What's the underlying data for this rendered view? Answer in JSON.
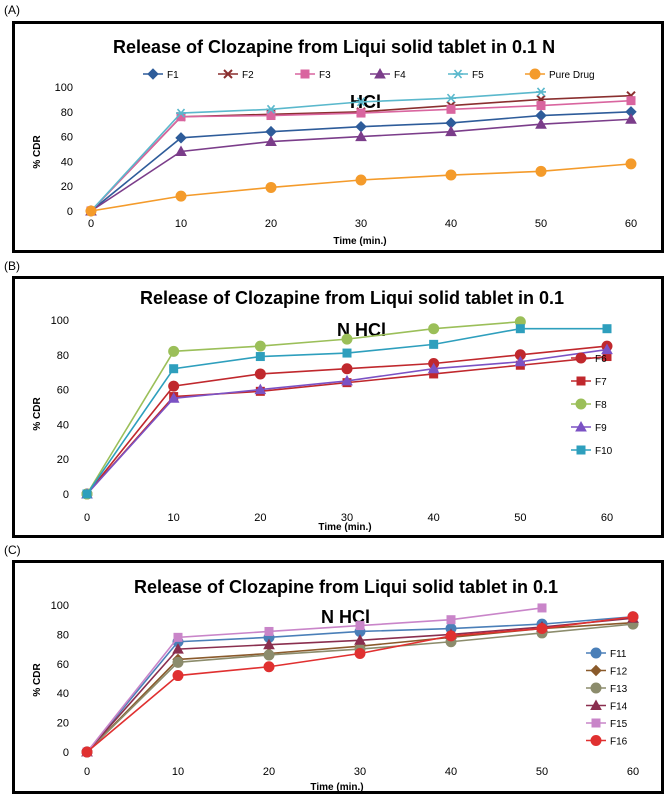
{
  "chart_data": [
    {
      "panel": "(A)",
      "type": "line",
      "title_lines": [
        "Release of Clozapine from Liqui solid tablet in 0.1 N",
        "HCl"
      ],
      "xlabel": "Time (min.)",
      "ylabel": "% CDR",
      "categories": [
        0,
        10,
        20,
        30,
        40,
        50,
        60
      ],
      "xlim": [
        0,
        60
      ],
      "ylim": [
        0,
        100
      ],
      "yticks": [
        0,
        20,
        40,
        60,
        80,
        100
      ],
      "legend_position": "top",
      "series": [
        {
          "name": "F1",
          "values": [
            0,
            59,
            64,
            68,
            71,
            77,
            80
          ],
          "color": "#2e5c9a",
          "marker": "diamond"
        },
        {
          "name": "F2",
          "values": [
            0,
            76,
            78,
            80,
            85,
            90,
            93
          ],
          "color": "#8a2f2f",
          "marker": "x"
        },
        {
          "name": "F3",
          "values": [
            0,
            76,
            77,
            79,
            82,
            85,
            89
          ],
          "color": "#d9659f",
          "marker": "square"
        },
        {
          "name": "F4",
          "values": [
            0,
            48,
            56,
            60,
            64,
            70,
            74
          ],
          "color": "#7b3d8a",
          "marker": "triangle"
        },
        {
          "name": "F5",
          "values": [
            0,
            79,
            82,
            88,
            91,
            96,
            null
          ],
          "color": "#5ab8cc",
          "marker": "asterisk"
        },
        {
          "name": "Pure Drug",
          "values": [
            0,
            12,
            19,
            25,
            29,
            32,
            38
          ],
          "color": "#f49b2b",
          "marker": "circle"
        }
      ]
    },
    {
      "panel": "(B)",
      "type": "line",
      "title_lines": [
        "Release of Clozapine from Liqui solid tablet in 0.1",
        "N HCl"
      ],
      "xlabel": "Time (min.)",
      "ylabel": "% CDR",
      "categories": [
        0,
        10,
        20,
        30,
        40,
        50,
        60
      ],
      "xlim": [
        0,
        60
      ],
      "ylim": [
        0,
        100
      ],
      "yticks": [
        0,
        20,
        40,
        60,
        80,
        100
      ],
      "legend_position": "right",
      "series": [
        {
          "name": "F6",
          "values": [
            0,
            62,
            69,
            72,
            75,
            80,
            85
          ],
          "color": "#c0282d",
          "marker": "circle"
        },
        {
          "name": "F7",
          "values": [
            0,
            56,
            59,
            64,
            69,
            74,
            79
          ],
          "color": "#c0282d",
          "marker": "square"
        },
        {
          "name": "F8",
          "values": [
            0,
            82,
            85,
            89,
            95,
            99,
            null
          ],
          "color": "#9bbf59",
          "marker": "circle"
        },
        {
          "name": "F9",
          "values": [
            0,
            55,
            60,
            65,
            72,
            76,
            83
          ],
          "color": "#7b52c4",
          "marker": "triangle"
        },
        {
          "name": "F10",
          "values": [
            0,
            72,
            79,
            81,
            86,
            95,
            95
          ],
          "color": "#2e9fbd",
          "marker": "square"
        }
      ]
    },
    {
      "panel": "(C)",
      "type": "line",
      "title_lines": [
        "Release of Clozapine from Liqui solid tablet in 0.1",
        "N HCl"
      ],
      "xlabel": "Time (min.)",
      "ylabel": "% CDR",
      "categories": [
        0,
        10,
        20,
        30,
        40,
        50,
        60
      ],
      "xlim": [
        0,
        60
      ],
      "ylim": [
        0,
        100
      ],
      "yticks": [
        0,
        20,
        40,
        60,
        80,
        100
      ],
      "legend_position": "right",
      "series": [
        {
          "name": "F11",
          "values": [
            0,
            75,
            78,
            82,
            84,
            87,
            92
          ],
          "color": "#4a7fb8",
          "marker": "circle"
        },
        {
          "name": "F12",
          "values": [
            0,
            63,
            67,
            72,
            78,
            84,
            88
          ],
          "color": "#8a5a2b",
          "marker": "diamond"
        },
        {
          "name": "F13",
          "values": [
            0,
            61,
            66,
            70,
            75,
            81,
            87
          ],
          "color": "#8c8c6c",
          "marker": "circle"
        },
        {
          "name": "F14",
          "values": [
            0,
            70,
            73,
            76,
            80,
            85,
            91
          ],
          "color": "#8a2f4f",
          "marker": "triangle"
        },
        {
          "name": "F15",
          "values": [
            0,
            78,
            82,
            86,
            90,
            98,
            null
          ],
          "color": "#c985c9",
          "marker": "square"
        },
        {
          "name": "F16",
          "values": [
            0,
            52,
            58,
            67,
            79,
            84,
            92
          ],
          "color": "#e03030",
          "marker": "circle"
        }
      ]
    }
  ]
}
